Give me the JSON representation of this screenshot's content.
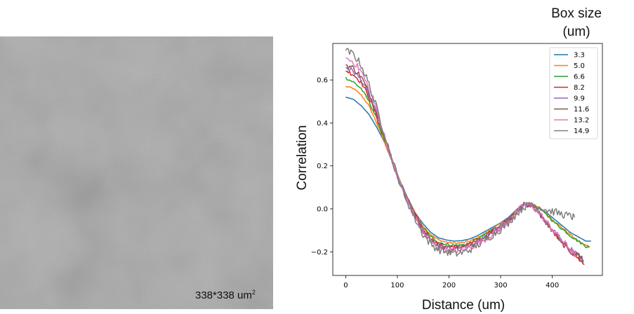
{
  "image_panel": {
    "scale_text": "338*338 um",
    "scale_sup": "2"
  },
  "legend_title": "Box size\n(um)",
  "chart_data": {
    "type": "line",
    "title": "",
    "xlabel": "Distance (um)",
    "ylabel": "Correlation",
    "xlim": [
      -25,
      497
    ],
    "ylim": [
      -0.31,
      0.77
    ],
    "xticks": [
      0,
      100,
      200,
      300,
      400
    ],
    "yticks": [
      -0.2,
      0.0,
      0.2,
      0.4,
      0.6
    ],
    "ytick_labels": [
      "−0.2",
      "0.0",
      "0.2",
      "0.4",
      "0.6"
    ],
    "grid": false,
    "legend_position": "top-right",
    "series": [
      {
        "name": "3.3",
        "color": "#1f77b4",
        "x": [
          0,
          15,
          30,
          45,
          60,
          75,
          90,
          105,
          120,
          135,
          150,
          165,
          180,
          195,
          210,
          225,
          240,
          255,
          270,
          285,
          300,
          315,
          330,
          345,
          360,
          375,
          390,
          405,
          420,
          435,
          450,
          465,
          475
        ],
        "y": [
          0.52,
          0.51,
          0.48,
          0.44,
          0.38,
          0.31,
          0.22,
          0.13,
          0.05,
          -0.02,
          -0.07,
          -0.11,
          -0.135,
          -0.145,
          -0.15,
          -0.148,
          -0.14,
          -0.125,
          -0.105,
          -0.085,
          -0.065,
          -0.04,
          -0.005,
          0.02,
          0.02,
          0.005,
          -0.02,
          -0.05,
          -0.08,
          -0.11,
          -0.13,
          -0.15,
          -0.15
        ],
        "rough": 0
      },
      {
        "name": "5.0",
        "color": "#ff7f0e",
        "x": [
          0,
          15,
          30,
          45,
          60,
          75,
          90,
          105,
          120,
          135,
          150,
          165,
          180,
          195,
          210,
          225,
          240,
          255,
          270,
          285,
          300,
          315,
          330,
          345,
          360,
          375,
          390,
          405,
          420,
          435,
          450,
          465,
          473
        ],
        "y": [
          0.57,
          0.56,
          0.53,
          0.48,
          0.4,
          0.31,
          0.22,
          0.13,
          0.05,
          -0.02,
          -0.08,
          -0.12,
          -0.145,
          -0.155,
          -0.16,
          -0.158,
          -0.15,
          -0.135,
          -0.115,
          -0.09,
          -0.07,
          -0.045,
          -0.01,
          0.02,
          0.02,
          0.005,
          -0.025,
          -0.06,
          -0.09,
          -0.12,
          -0.15,
          -0.17,
          -0.175
        ],
        "rough": 0.004
      },
      {
        "name": "6.6",
        "color": "#2ca02c",
        "x": [
          0,
          15,
          30,
          45,
          60,
          75,
          90,
          105,
          120,
          135,
          150,
          165,
          180,
          195,
          210,
          225,
          240,
          255,
          270,
          285,
          300,
          315,
          330,
          345,
          360,
          375,
          390,
          405,
          420,
          435,
          450,
          465,
          471
        ],
        "y": [
          0.61,
          0.59,
          0.56,
          0.5,
          0.42,
          0.32,
          0.22,
          0.13,
          0.05,
          -0.03,
          -0.09,
          -0.13,
          -0.155,
          -0.165,
          -0.17,
          -0.168,
          -0.16,
          -0.14,
          -0.12,
          -0.095,
          -0.075,
          -0.05,
          -0.015,
          0.02,
          0.02,
          0.0,
          -0.03,
          -0.065,
          -0.095,
          -0.125,
          -0.15,
          -0.175,
          -0.18
        ],
        "rough": 0.006
      },
      {
        "name": "8.2",
        "color": "#d62728",
        "x": [
          0,
          15,
          30,
          45,
          60,
          75,
          90,
          105,
          120,
          135,
          150,
          165,
          180,
          195,
          210,
          225,
          240,
          255,
          270,
          285,
          300,
          315,
          330,
          345,
          360,
          375,
          390,
          405,
          420,
          435,
          450,
          462
        ],
        "y": [
          0.645,
          0.625,
          0.59,
          0.52,
          0.43,
          0.33,
          0.22,
          0.12,
          0.04,
          -0.03,
          -0.095,
          -0.14,
          -0.165,
          -0.175,
          -0.18,
          -0.175,
          -0.165,
          -0.145,
          -0.125,
          -0.1,
          -0.08,
          -0.05,
          -0.015,
          0.02,
          0.015,
          -0.02,
          -0.07,
          -0.12,
          -0.165,
          -0.2,
          -0.23,
          -0.26
        ],
        "rough": 0.01
      },
      {
        "name": "9.9",
        "color": "#9467bd",
        "x": [
          0,
          15,
          30,
          45,
          60,
          75,
          90,
          105,
          120,
          135,
          150,
          165,
          180,
          195,
          210,
          225,
          240,
          255,
          270,
          285,
          300,
          315,
          330,
          345,
          360,
          375,
          390,
          405,
          420,
          435,
          450,
          461
        ],
        "y": [
          0.66,
          0.64,
          0.6,
          0.53,
          0.44,
          0.33,
          0.22,
          0.12,
          0.04,
          -0.035,
          -0.1,
          -0.145,
          -0.17,
          -0.18,
          -0.185,
          -0.18,
          -0.17,
          -0.15,
          -0.13,
          -0.105,
          -0.085,
          -0.055,
          -0.015,
          0.02,
          0.015,
          -0.02,
          -0.065,
          -0.11,
          -0.15,
          -0.185,
          -0.21,
          -0.24
        ],
        "rough": 0.012
      },
      {
        "name": "11.6",
        "color": "#8c564b",
        "x": [
          0,
          15,
          30,
          45,
          60,
          75,
          90,
          105,
          120,
          135,
          150,
          165,
          180,
          195,
          210,
          225,
          240,
          255,
          270,
          285,
          300,
          315,
          330,
          345,
          360,
          375,
          390,
          405,
          420,
          435,
          450,
          460
        ],
        "y": [
          0.67,
          0.655,
          0.615,
          0.54,
          0.45,
          0.34,
          0.22,
          0.12,
          0.035,
          -0.04,
          -0.105,
          -0.15,
          -0.175,
          -0.185,
          -0.19,
          -0.185,
          -0.175,
          -0.155,
          -0.135,
          -0.11,
          -0.085,
          -0.055,
          -0.015,
          0.02,
          0.015,
          -0.02,
          -0.07,
          -0.12,
          -0.16,
          -0.195,
          -0.22,
          -0.245
        ],
        "rough": 0.014
      },
      {
        "name": "13.2",
        "color": "#e377c2",
        "x": [
          0,
          15,
          30,
          45,
          60,
          75,
          90,
          105,
          120,
          135,
          150,
          165,
          180,
          195,
          210,
          225,
          240,
          255,
          270,
          285,
          300,
          315,
          330,
          345,
          360,
          375,
          390,
          405,
          420,
          435,
          445
        ],
        "y": [
          0.7,
          0.685,
          0.64,
          0.56,
          0.46,
          0.34,
          0.22,
          0.12,
          0.035,
          -0.045,
          -0.11,
          -0.155,
          -0.18,
          -0.19,
          -0.195,
          -0.19,
          -0.18,
          -0.16,
          -0.14,
          -0.115,
          -0.09,
          -0.06,
          -0.02,
          0.02,
          0.015,
          -0.02,
          -0.065,
          -0.11,
          -0.15,
          -0.19,
          -0.215
        ],
        "rough": 0.016
      },
      {
        "name": "14.9",
        "color": "#7f7f7f",
        "x": [
          0,
          15,
          30,
          45,
          60,
          75,
          90,
          105,
          120,
          135,
          150,
          165,
          180,
          195,
          210,
          225,
          240,
          255,
          270,
          285,
          300,
          315,
          330,
          345,
          360,
          375,
          390,
          405,
          420,
          435,
          443
        ],
        "y": [
          0.735,
          0.72,
          0.67,
          0.58,
          0.47,
          0.35,
          0.23,
          0.12,
          0.03,
          -0.05,
          -0.12,
          -0.165,
          -0.19,
          -0.2,
          -0.21,
          -0.205,
          -0.19,
          -0.17,
          -0.145,
          -0.12,
          -0.095,
          -0.065,
          -0.025,
          0.01,
          0.02,
          0.01,
          -0.005,
          -0.015,
          -0.025,
          -0.035,
          -0.04
        ],
        "rough": 0.018
      }
    ]
  }
}
